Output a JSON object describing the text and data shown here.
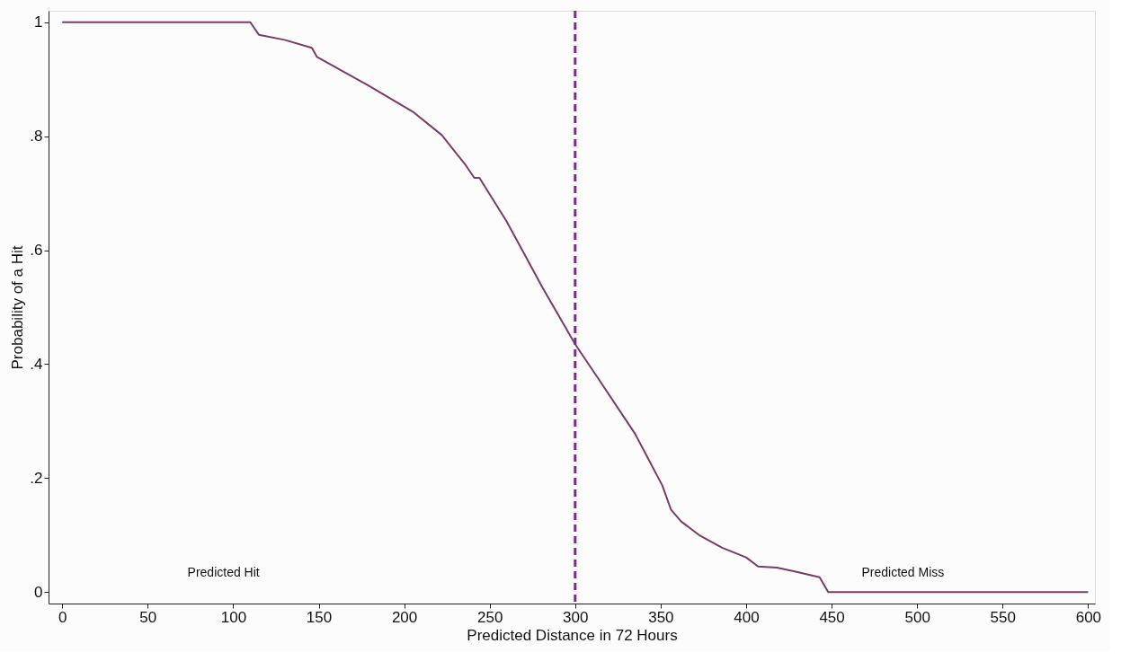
{
  "chart_data": {
    "type": "line",
    "xlabel": "Predicted Distance in 72 Hours",
    "ylabel": "Probability of a Hit",
    "x": [
      0,
      110,
      115,
      130,
      146,
      149,
      179,
      205,
      222,
      236,
      241,
      244,
      260,
      281,
      300,
      313,
      335,
      351,
      356,
      362,
      373,
      386,
      400,
      407,
      418,
      429,
      443,
      448,
      600
    ],
    "series": [
      {
        "color": "#7a3b64",
        "values": [
          1,
          1,
          0.978,
          0.969,
          0.955,
          0.939,
          0.889,
          0.843,
          0.802,
          0.749,
          0.727,
          0.727,
          0.65,
          0.534,
          0.435,
          0.377,
          0.278,
          0.187,
          0.145,
          0.124,
          0.099,
          0.078,
          0.061,
          0.045,
          0.043,
          0.036,
          0.026,
          0,
          0
        ]
      }
    ],
    "xlim": [
      -8,
      604
    ],
    "ylim": [
      -0.02,
      1.02
    ],
    "xticks": [
      0,
      50,
      100,
      150,
      200,
      250,
      300,
      350,
      400,
      450,
      500,
      550,
      600
    ],
    "yticks": [
      {
        "value": 0,
        "label": "0"
      },
      {
        "value": 0.2,
        "label": ".2"
      },
      {
        "value": 0.4,
        "label": ".4"
      },
      {
        "value": 0.6,
        "label": ".6"
      },
      {
        "value": 0.8,
        "label": ".8"
      },
      {
        "value": 1,
        "label": "1"
      }
    ],
    "ref_lines": [
      {
        "axis": "x",
        "value": 300,
        "color": "#7b2d8b",
        "line_style": "dashed"
      }
    ],
    "annotations": [
      "Predicted Hit",
      "Predicted Miss"
    ],
    "grid": false,
    "marker": "none",
    "line_style": "solid"
  }
}
